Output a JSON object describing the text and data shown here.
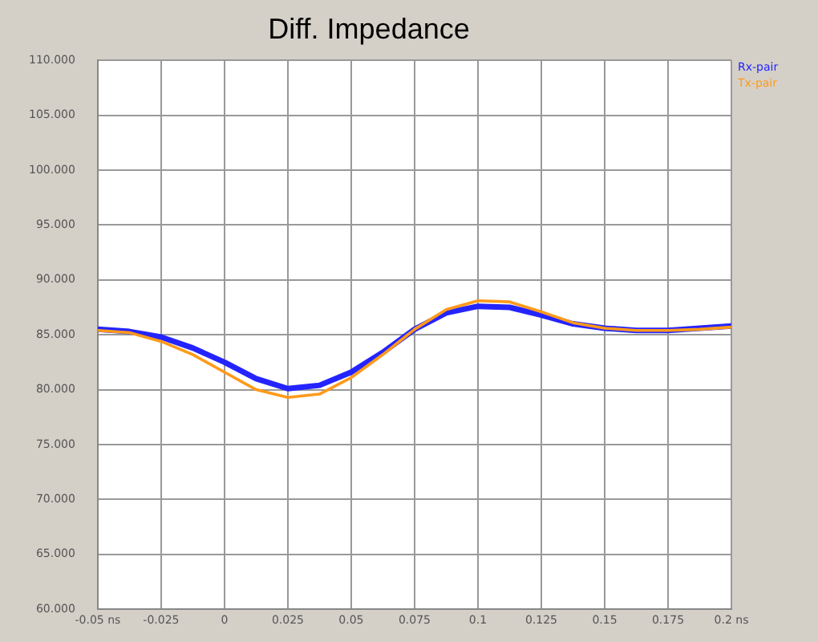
{
  "chart_data": {
    "type": "line",
    "title": "Diff. Impedance",
    "x": [
      -0.05,
      -0.0375,
      -0.025,
      -0.0125,
      0,
      0.0125,
      0.025,
      0.0375,
      0.05,
      0.0625,
      0.075,
      0.0875,
      0.1,
      0.1125,
      0.125,
      0.1375,
      0.15,
      0.1625,
      0.175,
      0.1875,
      0.2
    ],
    "series": [
      {
        "name": "Rx-pair",
        "color": "#2424ff",
        "values": [
          85.5,
          85.3,
          84.8,
          83.8,
          82.5,
          81.0,
          80.1,
          80.4,
          81.6,
          83.4,
          85.5,
          87.0,
          87.6,
          87.5,
          86.8,
          86.0,
          85.6,
          85.4,
          85.4,
          85.6,
          85.8
        ]
      },
      {
        "name": "Tx-pair",
        "color": "#ff9a1a",
        "values": [
          85.4,
          85.2,
          84.4,
          83.2,
          81.6,
          80.0,
          79.3,
          79.6,
          81.1,
          83.2,
          85.5,
          87.3,
          88.1,
          88.0,
          87.1,
          86.1,
          85.6,
          85.4,
          85.4,
          85.5,
          85.7
        ]
      }
    ],
    "xlim": [
      -0.05,
      0.2
    ],
    "xticks": [
      {
        "value": -0.05,
        "label": "-0.05 ns"
      },
      -0.025,
      0,
      0.025,
      0.05,
      0.075,
      0.1,
      0.125,
      0.15,
      0.175,
      {
        "value": 0.2,
        "label": "0.2 ns"
      }
    ],
    "ylim": [
      60,
      110
    ],
    "yticks": [
      {
        "value": 60,
        "label": "60.000"
      },
      {
        "value": 65,
        "label": "65.000"
      },
      {
        "value": 70,
        "label": "70.000"
      },
      {
        "value": 75,
        "label": "75.000"
      },
      {
        "value": 80,
        "label": "80.000"
      },
      {
        "value": 85,
        "label": "85.000"
      },
      {
        "value": 90,
        "label": "90.000"
      },
      {
        "value": 95,
        "label": "95.000"
      },
      {
        "value": 100,
        "label": "100.000"
      },
      {
        "value": 105,
        "label": "105.000"
      },
      {
        "value": 110,
        "label": "110.000"
      }
    ],
    "grid": true,
    "legend": "top right",
    "marker": "none",
    "line_style": "solid"
  }
}
